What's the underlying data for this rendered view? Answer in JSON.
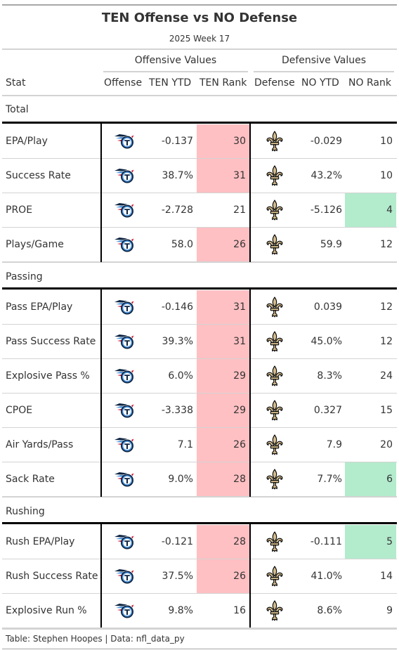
{
  "title": "TEN Offense vs NO Defense",
  "subtitle": "2025 Week 17",
  "spanners": {
    "offense": "Offensive Values",
    "defense": "Defensive Values"
  },
  "columns": {
    "stat": "Stat",
    "offense": "Offense",
    "ten_ytd": "TEN YTD",
    "ten_rank": "TEN Rank",
    "defense": "Defense",
    "no_ytd": "NO YTD",
    "no_rank": "NO Rank"
  },
  "colors": {
    "bad_rank": "#ffc0c3",
    "good_rank": "#b3ebcd",
    "titans_navy": "#0c2340",
    "titans_blue": "#4b92db",
    "saints_gold": "#d3bc8d"
  },
  "icons": {
    "offense": "titans-logo-icon",
    "defense": "saints-fleur-de-lis-icon"
  },
  "groups": [
    {
      "label": "Total",
      "rows": [
        {
          "stat": "EPA/Play",
          "ten_ytd": "-0.137",
          "ten_rank": "30",
          "ten_highlight": "bad",
          "no_ytd": "-0.029",
          "no_rank": "10",
          "no_highlight": "none"
        },
        {
          "stat": "Success Rate",
          "ten_ytd": "38.7%",
          "ten_rank": "31",
          "ten_highlight": "bad",
          "no_ytd": "43.2%",
          "no_rank": "10",
          "no_highlight": "none"
        },
        {
          "stat": "PROE",
          "ten_ytd": "-2.728",
          "ten_rank": "21",
          "ten_highlight": "none",
          "no_ytd": "-5.126",
          "no_rank": "4",
          "no_highlight": "good"
        },
        {
          "stat": "Plays/Game",
          "ten_ytd": "58.0",
          "ten_rank": "26",
          "ten_highlight": "bad",
          "no_ytd": "59.9",
          "no_rank": "12",
          "no_highlight": "none"
        }
      ]
    },
    {
      "label": "Passing",
      "rows": [
        {
          "stat": "Pass EPA/Play",
          "ten_ytd": "-0.146",
          "ten_rank": "31",
          "ten_highlight": "bad",
          "no_ytd": "0.039",
          "no_rank": "12",
          "no_highlight": "none"
        },
        {
          "stat": "Pass Success Rate",
          "ten_ytd": "39.3%",
          "ten_rank": "31",
          "ten_highlight": "bad",
          "no_ytd": "45.0%",
          "no_rank": "12",
          "no_highlight": "none"
        },
        {
          "stat": "Explosive Pass %",
          "ten_ytd": "6.0%",
          "ten_rank": "29",
          "ten_highlight": "bad",
          "no_ytd": "8.3%",
          "no_rank": "24",
          "no_highlight": "none"
        },
        {
          "stat": "CPOE",
          "ten_ytd": "-3.338",
          "ten_rank": "29",
          "ten_highlight": "bad",
          "no_ytd": "0.327",
          "no_rank": "15",
          "no_highlight": "none"
        },
        {
          "stat": "Air Yards/Pass",
          "ten_ytd": "7.1",
          "ten_rank": "26",
          "ten_highlight": "bad",
          "no_ytd": "7.9",
          "no_rank": "20",
          "no_highlight": "none"
        },
        {
          "stat": "Sack Rate",
          "ten_ytd": "9.0%",
          "ten_rank": "28",
          "ten_highlight": "bad",
          "no_ytd": "7.7%",
          "no_rank": "6",
          "no_highlight": "good"
        }
      ]
    },
    {
      "label": "Rushing",
      "rows": [
        {
          "stat": "Rush EPA/Play",
          "ten_ytd": "-0.121",
          "ten_rank": "28",
          "ten_highlight": "bad",
          "no_ytd": "-0.111",
          "no_rank": "5",
          "no_highlight": "good"
        },
        {
          "stat": "Rush Success Rate",
          "ten_ytd": "37.5%",
          "ten_rank": "26",
          "ten_highlight": "bad",
          "no_ytd": "41.0%",
          "no_rank": "14",
          "no_highlight": "none"
        },
        {
          "stat": "Explosive Run %",
          "ten_ytd": "9.8%",
          "ten_rank": "16",
          "ten_highlight": "none",
          "no_ytd": "8.6%",
          "no_rank": "9",
          "no_highlight": "none"
        }
      ]
    }
  ],
  "footer": "Table: Stephen Hoopes | Data: nfl_data_py"
}
